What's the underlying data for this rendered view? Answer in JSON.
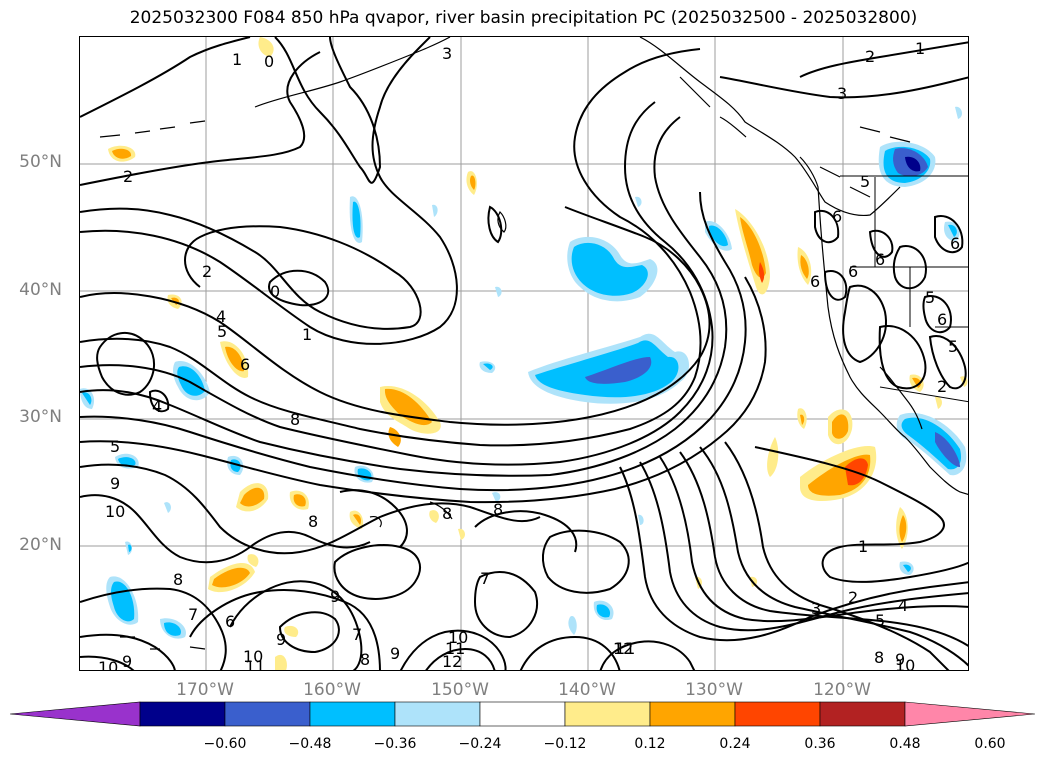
{
  "title": "2025032300 F084 850 hPa qvapor, river basin precipitation PC (2025032500 - 2025032800)",
  "lat_labels": [
    "50°N",
    "40°N",
    "30°N",
    "20°N"
  ],
  "lon_labels": [
    "170°W",
    "160°W",
    "150°W",
    "140°W",
    "130°W",
    "120°W"
  ],
  "colorbar": {
    "ticks": [
      "−0.60",
      "−0.48",
      "−0.36",
      "−0.24",
      "−0.12",
      "0.12",
      "0.24",
      "0.36",
      "0.48",
      "0.60"
    ],
    "colors": [
      "#9932cc",
      "#00008b",
      "#3a5fcd",
      "#00bfff",
      "#aee3fa",
      "#ffffff",
      "#ffec8b",
      "#ffa500",
      "#ff4500",
      "#b22222",
      "#ff86a9"
    ]
  },
  "contour_labels": [
    "1",
    "0",
    "3",
    "2",
    "1",
    "3",
    "2",
    "0",
    "1",
    "2",
    "4",
    "5",
    "6",
    "8",
    "4",
    "5",
    "9",
    "10",
    "8",
    "8",
    "8",
    "7",
    "8",
    "7",
    "6",
    "9",
    "9",
    "7",
    "8",
    "9",
    "10",
    "11",
    "12",
    "10",
    "11",
    "12",
    "9",
    "11",
    "10",
    "1",
    "2",
    "3",
    "4",
    "5",
    "8",
    "9",
    "10",
    "6",
    "6",
    "6",
    "5",
    "6",
    "5",
    "6",
    "2",
    "6",
    "5"
  ]
}
